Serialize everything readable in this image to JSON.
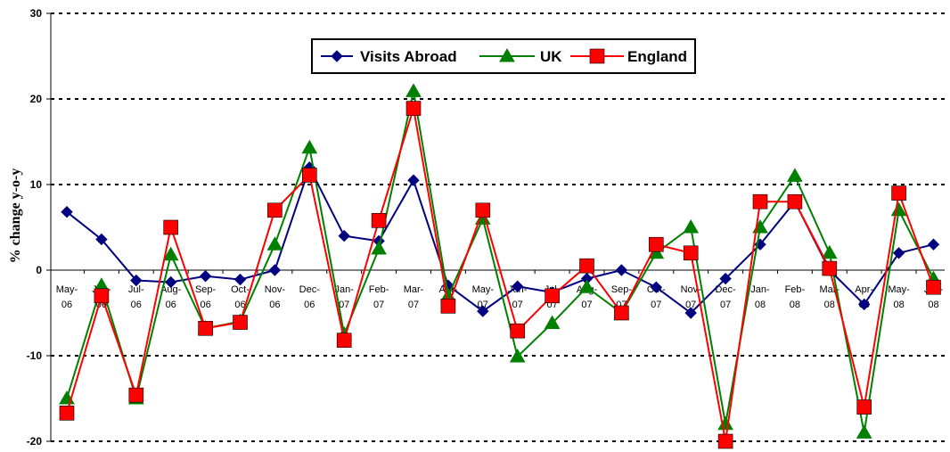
{
  "chart_data": {
    "type": "line",
    "ylabel": "% change y-o-y",
    "xlabel": "",
    "title": "",
    "ylim": [
      -20,
      30
    ],
    "yticks": [
      30,
      20,
      10,
      0,
      -10,
      -20
    ],
    "grid": "horizontal dashed",
    "legend_placement": "top-center",
    "categories": [
      [
        "May-",
        "06"
      ],
      [
        "Jun-",
        "06"
      ],
      [
        "Jul-",
        "06"
      ],
      [
        "Aug-",
        "06"
      ],
      [
        "Sep-",
        "06"
      ],
      [
        "Oct-",
        "06"
      ],
      [
        "Nov-",
        "06"
      ],
      [
        "Dec-",
        "06"
      ],
      [
        "Jan-",
        "07"
      ],
      [
        "Feb-",
        "07"
      ],
      [
        "Mar-",
        "07"
      ],
      [
        "Apr-",
        "07"
      ],
      [
        "May-",
        "07"
      ],
      [
        "Jun-",
        "07"
      ],
      [
        "Jul-",
        "07"
      ],
      [
        "Aug-",
        "07"
      ],
      [
        "Sep-",
        "07"
      ],
      [
        "Oct-",
        "07"
      ],
      [
        "Nov-",
        "07"
      ],
      [
        "Dec-",
        "07"
      ],
      [
        "Jan-",
        "08"
      ],
      [
        "Feb-",
        "08"
      ],
      [
        "Mar-",
        "08"
      ],
      [
        "Apr-",
        "08"
      ],
      [
        "May-",
        "08"
      ],
      [
        "Jun-",
        "08"
      ]
    ],
    "series": [
      {
        "name": "Visits Abroad",
        "color": "#000080",
        "marker": "diamond",
        "values": [
          6.8,
          3.6,
          -1.2,
          -1.4,
          -0.7,
          -1.1,
          0.0,
          12.0,
          4.0,
          3.4,
          10.5,
          -1.8,
          -4.8,
          -1.9,
          -2.6,
          -1.0,
          0.0,
          -2.0,
          -5.0,
          -1.0,
          3.0,
          8.0,
          0.0,
          -4.0,
          2.0,
          3.0
        ]
      },
      {
        "name": "UK",
        "color": "#008000",
        "marker": "triangle",
        "values": [
          -15.0,
          -1.8,
          -15.0,
          1.8,
          -6.8,
          -6.0,
          3.0,
          14.3,
          -7.5,
          2.5,
          20.9,
          -3.0,
          6.0,
          -10.1,
          -6.2,
          -2.0,
          -5.0,
          2.0,
          5.0,
          -18.0,
          5.0,
          11.0,
          2.0,
          -19.0,
          7.0,
          -1.0
        ]
      },
      {
        "name": "England",
        "color": "#ff0000",
        "marker": "square",
        "values": [
          -16.7,
          -3.0,
          -14.6,
          5.0,
          -6.8,
          -6.1,
          7.0,
          11.1,
          -8.2,
          5.8,
          18.9,
          -4.2,
          7.0,
          -7.1,
          -3.0,
          0.5,
          -5.0,
          3.0,
          2.0,
          -20.0,
          8.0,
          8.0,
          0.2,
          -16.0,
          9.0,
          -2.0
        ]
      }
    ]
  }
}
